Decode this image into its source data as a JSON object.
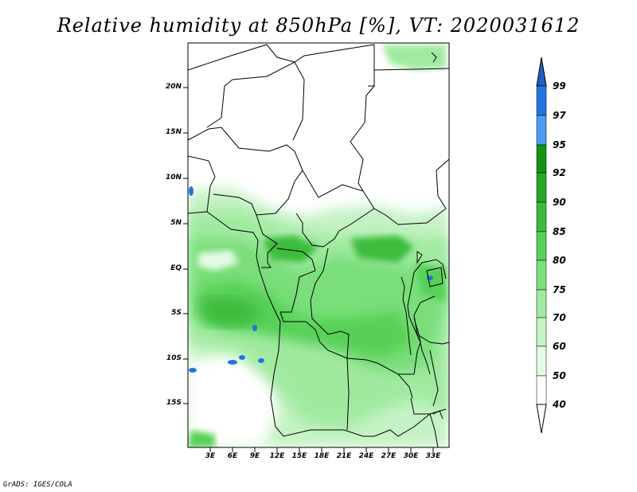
{
  "title": "Relative humidity at 850hPa [%], VT: 2020031612",
  "credit": "GrADS: IGES/COLA",
  "map": {
    "lat_labels": [
      "20N",
      "15N",
      "10N",
      "5N",
      "EQ",
      "5S",
      "10S",
      "15S"
    ],
    "lon_labels": [
      "3E",
      "6E",
      "9E",
      "12E",
      "15E",
      "18E",
      "21E",
      "24E",
      "27E",
      "30E",
      "33E"
    ]
  },
  "colorbar": {
    "labels": [
      "99",
      "97",
      "95",
      "92",
      "90",
      "85",
      "80",
      "75",
      "70",
      "60",
      "50",
      "40"
    ],
    "colors": [
      "#1c60c8",
      "#2474e0",
      "#4a9cf0",
      "#129412",
      "#24a824",
      "#3cbc3c",
      "#56d056",
      "#7ade7a",
      "#a0eaa0",
      "#c4f2c4",
      "#e4fae4",
      "#ffffff"
    ]
  },
  "colors": {
    "land_low": "#ffffff",
    "moist_light": "#c4f2c4",
    "moist_mid": "#7ade7a",
    "moist_high": "#3cbc3c",
    "saturated": "#2474e0"
  }
}
